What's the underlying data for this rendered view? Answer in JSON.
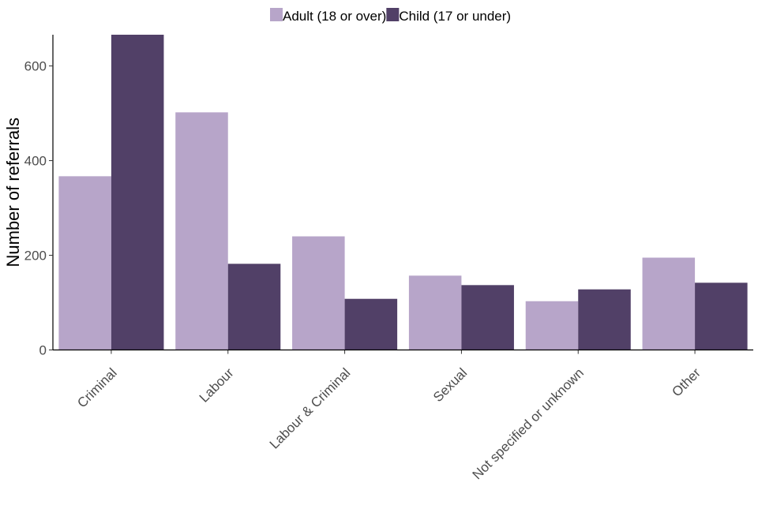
{
  "chart_data": {
    "type": "bar",
    "title": "",
    "xlabel": "",
    "ylabel": "Number of referrals",
    "categories": [
      "Criminal",
      "Labour",
      "Labour & Criminal",
      "Sexual",
      "Not specified or unknown",
      "Other"
    ],
    "series": [
      {
        "name": "Adult (18 or over)",
        "color": "#b7a5c9",
        "values": [
          367,
          502,
          240,
          157,
          103,
          195
        ]
      },
      {
        "name": "Child (17 or under)",
        "color": "#514067",
        "values": [
          666,
          182,
          108,
          137,
          128,
          142
        ]
      }
    ],
    "ylim": [
      0,
      666
    ],
    "yticks": [
      0,
      200,
      400,
      600
    ],
    "legend": "top",
    "grid": false
  }
}
